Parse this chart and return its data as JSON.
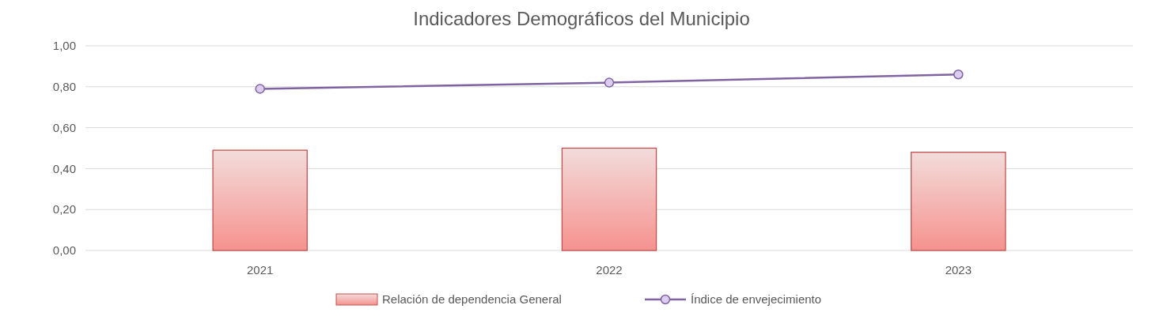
{
  "chart_data": {
    "type": "bar",
    "title": "Indicadores Demográficos del Municipio",
    "categories": [
      "2021",
      "2022",
      "2023"
    ],
    "series": [
      {
        "name": "Relación de dependencia General",
        "color": "#c0504d",
        "values": [
          0.49,
          0.5,
          0.48
        ]
      },
      {
        "name": "Índice de envejecimiento",
        "type": "line",
        "color": "#8064a2",
        "values": [
          0.79,
          0.82,
          0.86
        ]
      }
    ],
    "ylim": [
      0,
      1
    ],
    "yticks": [
      {
        "value": 0,
        "label": "0,00"
      },
      {
        "value": 0.2,
        "label": "0,20"
      },
      {
        "value": 0.4,
        "label": "0,40"
      },
      {
        "value": 0.6,
        "label": "0,60"
      },
      {
        "value": 0.8,
        "label": "0,80"
      },
      {
        "value": 1,
        "label": "1,00"
      }
    ],
    "grid": "y",
    "legend": "bottom",
    "marker": "circle"
  }
}
